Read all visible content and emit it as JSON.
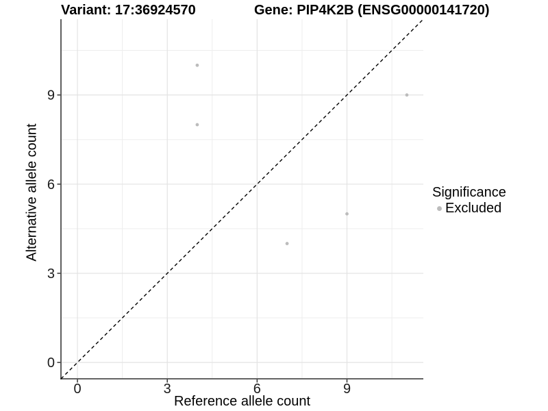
{
  "chart_data": {
    "type": "scatter",
    "titles": {
      "variant": "Variant: 17:36924570",
      "gene": "Gene: PIP4K2B (ENSG00000141720)"
    },
    "xlabel": "Reference allele count",
    "ylabel": "Alternative allele count",
    "xlim": [
      -0.55,
      11.55
    ],
    "ylim": [
      -0.55,
      11.55
    ],
    "x_ticks": [
      0,
      3,
      6,
      9
    ],
    "y_ticks": [
      0,
      3,
      6,
      9
    ],
    "x_minor_gridlines": [
      1.5,
      4.5,
      7.5,
      10.5
    ],
    "y_minor_gridlines": [
      1.5,
      4.5,
      7.5,
      10.5
    ],
    "grid": "major and minor gridlines, white panel",
    "identity_line": {
      "style": "dashed",
      "from": [
        -0.55,
        -0.55
      ],
      "to": [
        11.55,
        11.55
      ],
      "color": "#000000"
    },
    "series": [
      {
        "name": "Excluded",
        "color": "#bcbcbc",
        "points": [
          [
            4,
            10
          ],
          [
            4,
            8
          ],
          [
            7,
            4
          ],
          [
            9,
            5
          ],
          [
            11,
            9
          ]
        ]
      }
    ],
    "legend": {
      "title": "Significance",
      "position": "right",
      "items": [
        {
          "label": "Excluded",
          "color": "#bcbcbc"
        }
      ]
    },
    "colors": {
      "gridline_major": "#e3e3e3",
      "gridline_minor": "#ededed",
      "axis_line": "#4d4d4d",
      "tick_mark": "#333333",
      "tick_label": "#1a1a1a",
      "point": "#bcbcbc"
    }
  }
}
